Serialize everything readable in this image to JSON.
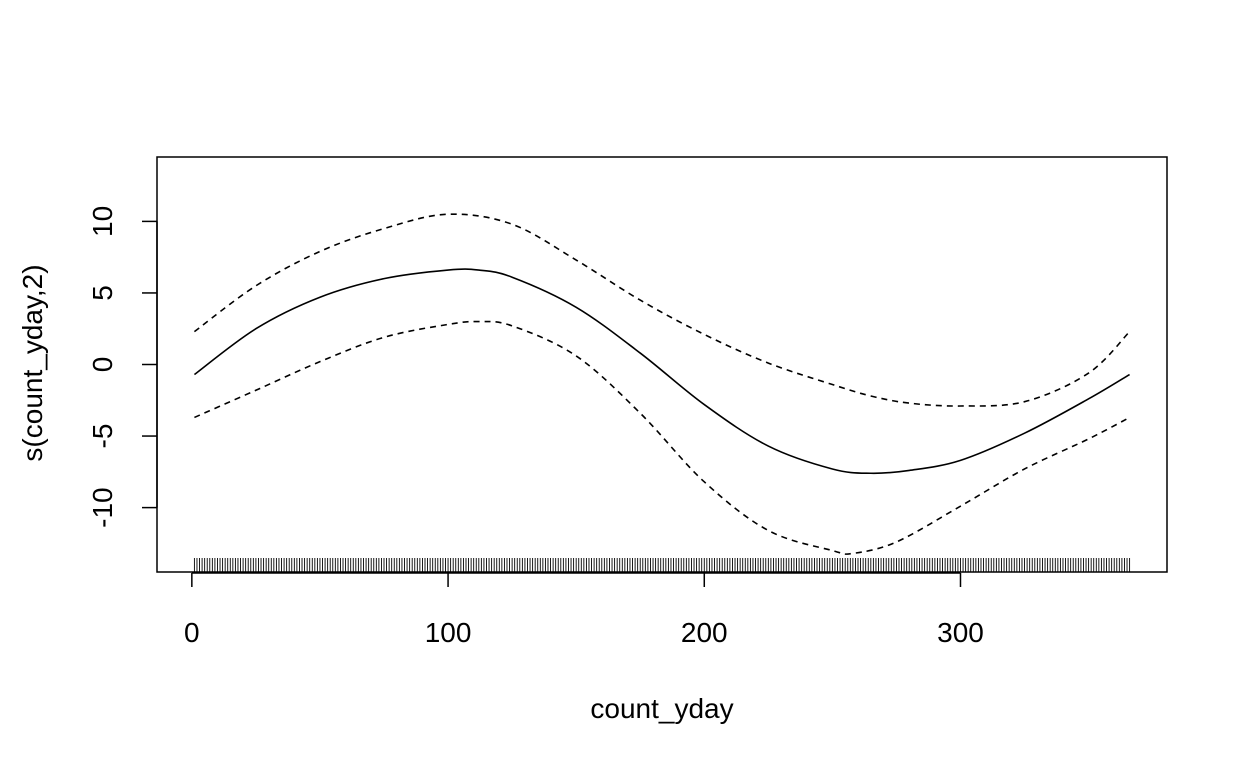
{
  "chart_data": {
    "type": "line",
    "title": "",
    "xlabel": "count_yday",
    "ylabel": "s(count_yday,2)",
    "xlim": [
      -13.6,
      380.6
    ],
    "ylim": [
      -14.5,
      14.5
    ],
    "xticks": [
      0,
      100,
      200,
      300
    ],
    "yticks": [
      -10,
      -5,
      0,
      5,
      10
    ],
    "grid": false,
    "legend": "none",
    "rug": {
      "from": 1,
      "to": 366,
      "step": 1
    },
    "series": [
      {
        "style": "solid",
        "x": [
          1,
          25,
          50,
          75,
          100,
          112,
          125,
          150,
          175,
          200,
          225,
          250,
          265,
          280,
          300,
          325,
          350,
          366
        ],
        "y": [
          -0.7,
          2.5,
          4.7,
          6.0,
          6.6,
          6.6,
          6.1,
          4.0,
          0.8,
          -2.8,
          -5.7,
          -7.3,
          -7.6,
          -7.4,
          -6.7,
          -4.8,
          -2.4,
          -0.7
        ]
      },
      {
        "style": "dashed",
        "x": [
          1,
          25,
          50,
          75,
          100,
          125,
          150,
          175,
          200,
          225,
          250,
          265,
          280,
          300,
          325,
          350,
          366
        ],
        "y": [
          2.3,
          5.5,
          7.9,
          9.5,
          10.5,
          9.8,
          7.3,
          4.5,
          2.1,
          0.1,
          -1.4,
          -2.2,
          -2.7,
          -2.9,
          -2.6,
          -0.6,
          2.3
        ]
      },
      {
        "style": "dashed",
        "x": [
          1,
          25,
          50,
          75,
          100,
          112,
          125,
          150,
          175,
          200,
          225,
          250,
          258,
          275,
          300,
          325,
          350,
          366
        ],
        "y": [
          -3.7,
          -1.8,
          0.2,
          1.9,
          2.8,
          3.0,
          2.7,
          0.6,
          -3.4,
          -8.2,
          -11.6,
          -13.0,
          -13.2,
          -12.4,
          -9.9,
          -7.3,
          -5.2,
          -3.7
        ]
      }
    ]
  }
}
